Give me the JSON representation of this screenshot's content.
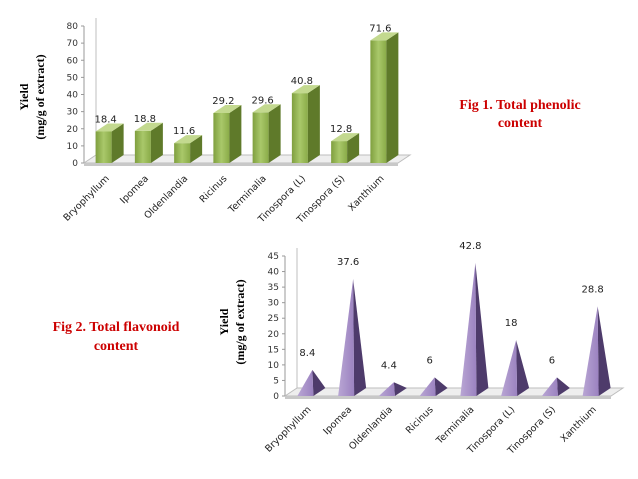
{
  "chart_data": [
    {
      "type": "bar",
      "title": "Fig 1. Total phenolic content",
      "title_lines": [
        "Fig 1. Total phenolic",
        "content"
      ],
      "ylabel_lines": [
        "Yield",
        "(mg/g of extract)"
      ],
      "categories": [
        "Bryophyllum",
        "Ipomea",
        "Oldenlandia",
        "Ricinus",
        "Terminalia",
        "Tinospora (L)",
        "Tinospora (S)",
        "Xanthium"
      ],
      "values": [
        18.4,
        18.8,
        11.6,
        29.2,
        29.6,
        40.8,
        12.8,
        71.6
      ],
      "ylim": [
        0,
        80
      ],
      "yticks": [
        0,
        10,
        20,
        30,
        40,
        50,
        60,
        70,
        80
      ],
      "color": "#9bbb59"
    },
    {
      "type": "bar",
      "title": "Fig 2. Total flavonoid content",
      "title_lines": [
        "Fig 2. Total flavonoid",
        "content"
      ],
      "ylabel_lines": [
        "Yield",
        "(mg/g of extract)"
      ],
      "categories": [
        "Bryophyllum",
        "Ipomea",
        "Oldenlandia",
        "Ricinus",
        "Terminalia",
        "Tinospora (L)",
        "Tinospora (S)",
        "Xanthium"
      ],
      "values": [
        8.4,
        37.6,
        4.4,
        6,
        42.8,
        18,
        6,
        28.8
      ],
      "ylim": [
        0,
        45
      ],
      "yticks": [
        0,
        5,
        10,
        15,
        20,
        25,
        30,
        35,
        40,
        45
      ],
      "color": "#8064a2"
    }
  ]
}
